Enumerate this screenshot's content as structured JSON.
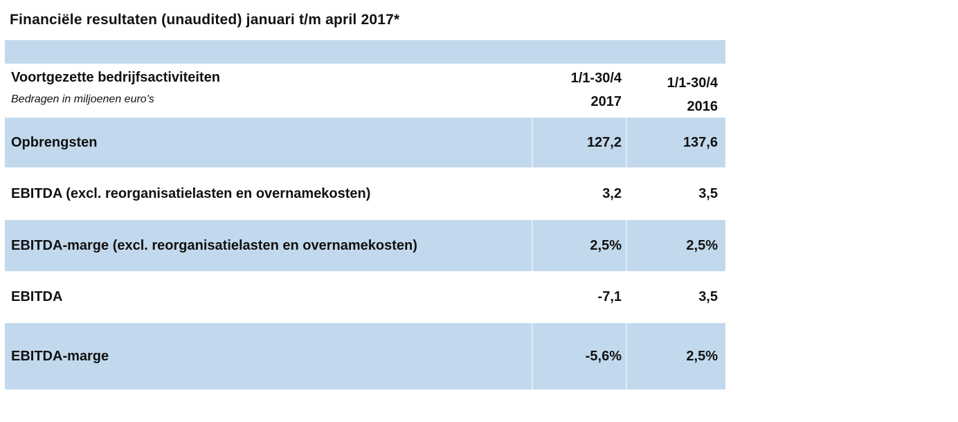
{
  "page_title": "Financiële resultaten (unaudited) januari t/m april 2017*",
  "table": {
    "section_header": "Voortgezette bedrijfsactiviteiten",
    "section_subheader": "Bedragen in miljoenen euro's",
    "columns": {
      "col_2017": {
        "line1": "1/1-30/4",
        "line2": "2017"
      },
      "col_2016": {
        "line1": "1/1-30/4",
        "line2": "2016"
      }
    },
    "rows": [
      {
        "label": "Opbrengsten",
        "value_2017": "127,2",
        "value_2016": "137,6",
        "shaded": true
      },
      {
        "label": "EBITDA (excl. reorganisatielasten en overnamekosten)",
        "value_2017": "3,2",
        "value_2016": "3,5",
        "shaded": false
      },
      {
        "label": "EBITDA-marge (excl. reorganisatielasten en overnamekosten)",
        "value_2017": "2,5%",
        "value_2016": "2,5%",
        "shaded": true
      },
      {
        "label": "EBITDA",
        "value_2017": "-7,1",
        "value_2016": "3,5",
        "shaded": false
      },
      {
        "label": "EBITDA-marge",
        "value_2017": "-5,6%",
        "value_2016": "2,5%",
        "shaded": true
      }
    ]
  },
  "colors": {
    "row_highlight": "#C2D9ED",
    "column_divider": "rgba(255,255,255,0.5)",
    "text": "#111111",
    "page_background": "#FFFFFF"
  }
}
